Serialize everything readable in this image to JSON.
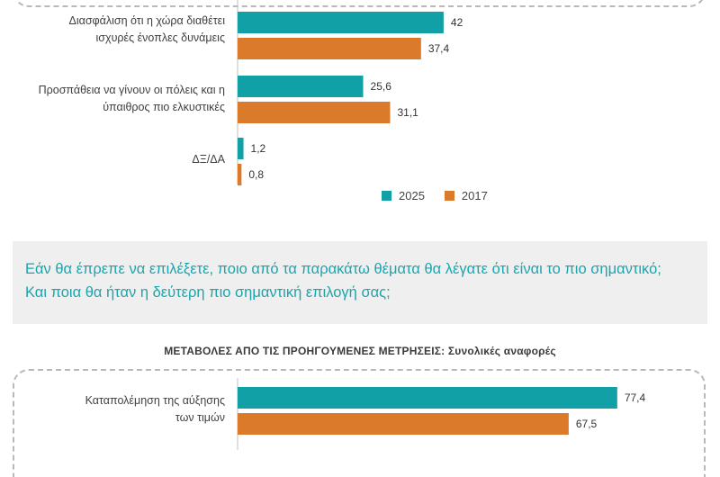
{
  "colors": {
    "teal": "#11a0a6",
    "orange": "#dc7a2c"
  },
  "top_chart": {
    "categories": [
      [
        "Διασφάλιση ότι η χώρα διαθέτει",
        "ισχυρές ένοπλες δυνάμεις"
      ],
      [
        "Προσπάθεια να γίνουν οι πόλεις και η",
        "ύπαιθρος πιο ελκυστικές"
      ],
      [
        "ΔΞ/ΔΑ"
      ]
    ],
    "legend": [
      "2025",
      "2017"
    ]
  },
  "question": "Εάν θα έπρεπε να επιλέξετε, ποιο από τα παρακάτω θέματα θα λέγατε ότι είναι το πιο σημαντικό; Και ποια θα ήταν η δεύτερη πιο σημαντική επιλογή σας;",
  "subheading": {
    "bold": "ΜΕΤΑΒΟΛΕΣ ΑΠΟ ΤΙΣ ΠΡΟΗΓΟΥΜΕΝΕΣ ΜΕΤΡΗΣΕΙΣ:",
    "rest": "Συνολικές αναφορές"
  },
  "bottom_chart": {
    "categories": [
      [
        "Καταπολέμηση της αύξησης",
        "των τιμών"
      ]
    ]
  },
  "chart_data": [
    {
      "type": "bar",
      "orientation": "horizontal",
      "categories": [
        "Διασφάλιση ότι η χώρα διαθέτει ισχυρές ένοπλες δυνάμεις",
        "Προσπάθεια να γίνουν οι πόλεις και η ύπαιθρος πιο ελκυστικές",
        "ΔΞ/ΔΑ"
      ],
      "series": [
        {
          "name": "2025",
          "color": "#11a0a6",
          "values": [
            42,
            25.6,
            1.2
          ],
          "labels": [
            "42",
            "25,6",
            "1,2"
          ]
        },
        {
          "name": "2017",
          "color": "#dc7a2c",
          "values": [
            37.4,
            31.1,
            0.8
          ],
          "labels": [
            "37,4",
            "31,1",
            "0,8"
          ]
        }
      ],
      "legend_position": "bottom-right"
    },
    {
      "type": "bar",
      "orientation": "horizontal",
      "categories": [
        "Καταπολέμηση της αύξησης των τιμών"
      ],
      "series": [
        {
          "name": "2025",
          "color": "#11a0a6",
          "values": [
            77.4
          ],
          "labels": [
            "77,4"
          ]
        },
        {
          "name": "2017",
          "color": "#dc7a2c",
          "values": [
            67.5
          ],
          "labels": [
            "67,5"
          ]
        }
      ]
    }
  ]
}
